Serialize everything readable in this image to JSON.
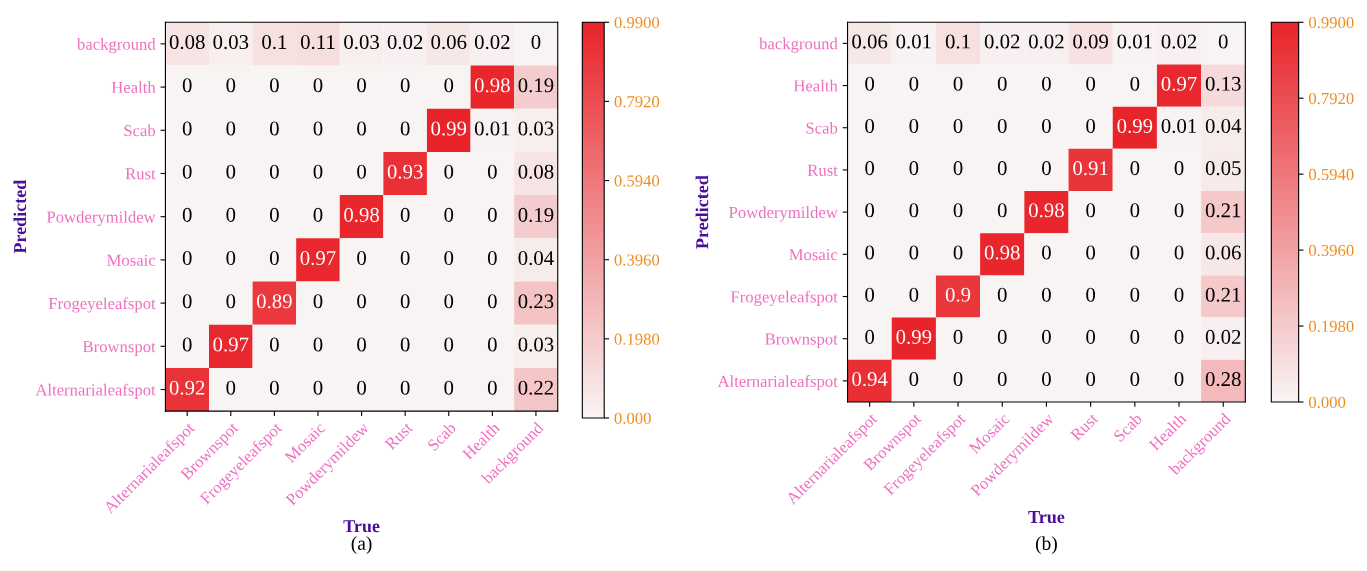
{
  "chart_data": [
    {
      "type": "heatmap",
      "title": "(a)",
      "xlabel": "True",
      "ylabel": "Predicted",
      "categories": [
        "Alternarialeafspot",
        "Brownspot",
        "Frogeyeleafspot",
        "Mosaic",
        "Powderymildew",
        "Rust",
        "Scab",
        "Health",
        "background"
      ],
      "y_categories": [
        "background",
        "Health",
        "Scab",
        "Rust",
        "Powderymildew",
        "Mosaic",
        "Frogeyeleafspot",
        "Brownspot",
        "Alternarialeafspot"
      ],
      "cells": [
        [
          0.08,
          0.03,
          0.1,
          0.11,
          0.03,
          0.02,
          0.06,
          0.02,
          0
        ],
        [
          0,
          0,
          0,
          0,
          0,
          0,
          0,
          0.98,
          0.19
        ],
        [
          0,
          0,
          0,
          0,
          0,
          0,
          0.99,
          0.01,
          0.03
        ],
        [
          0,
          0,
          0,
          0,
          0,
          0.93,
          0,
          0,
          0.08
        ],
        [
          0,
          0,
          0,
          0,
          0.98,
          0,
          0,
          0,
          0.19
        ],
        [
          0,
          0,
          0,
          0.97,
          0,
          0,
          0,
          0,
          0.04
        ],
        [
          0,
          0,
          0.89,
          0,
          0,
          0,
          0,
          0,
          0.23
        ],
        [
          0,
          0.97,
          0,
          0,
          0,
          0,
          0,
          0,
          0.03
        ],
        [
          0.92,
          0,
          0,
          0,
          0,
          0,
          0,
          0,
          0.22
        ]
      ],
      "data_labels": true,
      "clim": [
        0,
        0.99
      ],
      "cticks": [
        {
          "value": 0,
          "label": "0.000"
        },
        {
          "value": 0.198,
          "label": "0.1980"
        },
        {
          "value": 0.396,
          "label": "0.3960"
        },
        {
          "value": 0.594,
          "label": "0.5940"
        },
        {
          "value": 0.792,
          "label": "0.7920"
        },
        {
          "value": 0.99,
          "label": "0.9900"
        }
      ]
    },
    {
      "type": "heatmap",
      "title": "(b)",
      "xlabel": "True",
      "ylabel": "Predicted",
      "categories": [
        "Alternarialeafspot",
        "Brownspot",
        "Frogeyeleafspot",
        "Mosaic",
        "Powderymildew",
        "Rust",
        "Scab",
        "Health",
        "background"
      ],
      "y_categories": [
        "background",
        "Health",
        "Scab",
        "Rust",
        "Powderymildew",
        "Mosaic",
        "Frogeyeleafspot",
        "Brownspot",
        "Alternarialeafspot"
      ],
      "cells": [
        [
          0.06,
          0.01,
          0.1,
          0.02,
          0.02,
          0.09,
          0.01,
          0.02,
          0
        ],
        [
          0,
          0,
          0,
          0,
          0,
          0,
          0,
          0.97,
          0.13
        ],
        [
          0,
          0,
          0,
          0,
          0,
          0,
          0.99,
          0.01,
          0.04
        ],
        [
          0,
          0,
          0,
          0,
          0,
          0.91,
          0,
          0,
          0.05
        ],
        [
          0,
          0,
          0,
          0,
          0.98,
          0,
          0,
          0,
          0.21
        ],
        [
          0,
          0,
          0,
          0.98,
          0,
          0,
          0,
          0,
          0.06
        ],
        [
          0,
          0,
          0.9,
          0,
          0,
          0,
          0,
          0,
          0.21
        ],
        [
          0,
          0.99,
          0,
          0,
          0,
          0,
          0,
          0,
          0.02
        ],
        [
          0.94,
          0,
          0,
          0,
          0,
          0,
          0,
          0,
          0.28
        ]
      ],
      "data_labels": true,
      "clim": [
        0,
        0.99
      ],
      "cticks": [
        {
          "value": 0,
          "label": "0.000"
        },
        {
          "value": 0.198,
          "label": "0.1980"
        },
        {
          "value": 0.396,
          "label": "0.3960"
        },
        {
          "value": 0.594,
          "label": "0.5940"
        },
        {
          "value": 0.792,
          "label": "0.7920"
        },
        {
          "value": 0.99,
          "label": "0.9900"
        }
      ]
    }
  ]
}
